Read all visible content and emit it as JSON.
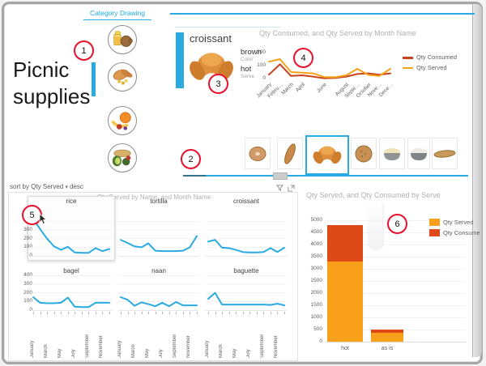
{
  "page_title": "Picnic supplies",
  "colors": {
    "accent_blue": "#29ABE2",
    "served_orange": "#F7A11A",
    "consumed_red": "#D8491D",
    "callout_red": "#E8112D",
    "title_gray": "#B3B1AF",
    "axis_text": "#605E5C"
  },
  "slicer": {
    "title": "Category Drawing",
    "items": [
      {
        "name": "drinks"
      },
      {
        "name": "bread"
      },
      {
        "name": "fruit"
      },
      {
        "name": "salad"
      }
    ],
    "selected_index": 1
  },
  "card": {
    "title": "croissant",
    "image": "croissant",
    "fields": [
      {
        "value": "brown",
        "label": "Color"
      },
      {
        "value": "hot",
        "label": "Serve"
      }
    ]
  },
  "sort_bar": {
    "label": "sort by Qty Served",
    "order": "desc"
  },
  "thumbnail_strip": {
    "items": [
      "bagel",
      "baguette",
      "croissant",
      "boule",
      "rice-bowl",
      "naan-bowl",
      "flatbread"
    ],
    "selected": "croissant",
    "selected_index": 2
  },
  "callouts": {
    "numbers": [
      "1",
      "2",
      "3",
      "4",
      "5",
      "6"
    ]
  },
  "chart_data": [
    {
      "id": "monthly_line",
      "type": "line",
      "title": "Qty Consumed, and Qty Served by Month Name",
      "x": [
        "January",
        "February",
        "March",
        "April",
        "May",
        "June",
        "July",
        "August",
        "September",
        "October",
        "November",
        "December"
      ],
      "x_tick_labels": [
        "January",
        "Febru…",
        "March",
        "April",
        "June",
        "August",
        "Septe…",
        "October",
        "Nove…",
        "Dece…"
      ],
      "x_tick_month_index": [
        0,
        1,
        2,
        3,
        5,
        7,
        8,
        9,
        10,
        11
      ],
      "yticks": [
        0,
        100,
        200
      ],
      "ylim": [
        0,
        200
      ],
      "grid": false,
      "legend_position": "right",
      "series": [
        {
          "name": "Qty Consumed",
          "color": "#C8401C",
          "values": [
            30,
            110,
            20,
            25,
            15,
            2,
            5,
            15,
            35,
            40,
            30,
            40
          ]
        },
        {
          "name": "Qty Served",
          "color": "#F7A11A",
          "values": [
            130,
            150,
            50,
            45,
            40,
            12,
            10,
            25,
            75,
            28,
            20,
            75
          ]
        }
      ]
    },
    {
      "id": "small_multiples",
      "type": "line",
      "title": "Qty Served by Name, and Month Name",
      "x": [
        "January",
        "February",
        "March",
        "April",
        "May",
        "June",
        "July",
        "August",
        "September",
        "October",
        "November",
        "December"
      ],
      "x_tick_labels": [
        "January",
        "March",
        "May",
        "July",
        "September",
        "November"
      ],
      "x_tick_month_index": [
        0,
        2,
        4,
        6,
        8,
        10
      ],
      "yticks": [
        400,
        300,
        200,
        100,
        0
      ],
      "ylim": [
        0,
        450
      ],
      "grid": true,
      "line_color": "#29ABE2",
      "highlighted_panel": "rice",
      "panels": [
        {
          "name": "rice",
          "values": [
            430,
            310,
            200,
            110,
            70,
            105,
            40,
            35,
            35,
            90,
            55,
            80
          ]
        },
        {
          "name": "tortilla",
          "values": [
            185,
            150,
            110,
            100,
            145,
            60,
            55,
            55,
            55,
            60,
            100,
            230
          ]
        },
        {
          "name": "croissant",
          "values": [
            165,
            185,
            95,
            90,
            70,
            45,
            40,
            40,
            45,
            90,
            45,
            95
          ]
        },
        {
          "name": "bagel",
          "values": [
            150,
            85,
            80,
            80,
            85,
            145,
            40,
            35,
            35,
            85,
            85,
            85
          ]
        },
        {
          "name": "naan",
          "values": [
            150,
            120,
            50,
            90,
            70,
            45,
            85,
            45,
            95,
            55,
            55,
            55
          ]
        },
        {
          "name": "baguette",
          "values": [
            130,
            200,
            65,
            65,
            65,
            65,
            65,
            65,
            65,
            60,
            75,
            55
          ]
        }
      ]
    },
    {
      "id": "serve_bar",
      "type": "bar",
      "title": "Qty Served, and Qty Consumed by Serve",
      "categories": [
        "hot",
        "as is"
      ],
      "ylim": [
        0,
        5000
      ],
      "ytick_step": 500,
      "grid": true,
      "legend_position": "right",
      "series": [
        {
          "name": "Qty Served",
          "color": "#F9A01B",
          "values": [
            3300,
            380
          ]
        },
        {
          "name": "Qty Consumed",
          "color": "#DD4A17",
          "values": [
            1500,
            120
          ]
        }
      ]
    }
  ]
}
